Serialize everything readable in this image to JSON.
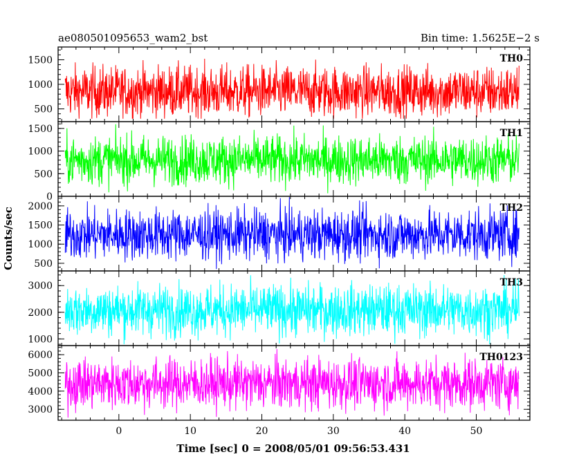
{
  "chart_data": {
    "type": "line",
    "title": "ae080501095653_wam2_bst",
    "bin_time": "Bin time: 1.5625E−2 s",
    "xlabel": "Time [sec] 0 = 2008/05/01 09:56:53.431",
    "ylabel": "Counts/sec",
    "xlim": [
      -8.5,
      57.5
    ],
    "data_x_range": [
      -7.5,
      56
    ],
    "x_ticks": [
      0,
      10,
      20,
      30,
      40,
      50
    ],
    "x_tick_labels": [
      "0",
      "10",
      "20",
      "30",
      "40",
      "50"
    ],
    "grid": false,
    "legend": "none",
    "panels": [
      {
        "name": "TH0",
        "color": "#ff0000",
        "ylim": [
          240,
          1760
        ],
        "y_ticks": [
          500,
          1000,
          1500
        ],
        "y_tick_labels": [
          "500",
          "1000",
          "1500"
        ],
        "mean": 850,
        "spread": 260,
        "min": 300,
        "max": 1750
      },
      {
        "name": "TH1",
        "color": "#00ff00",
        "ylim": [
          0,
          1650
        ],
        "y_ticks": [
          0,
          500,
          1000,
          1500
        ],
        "y_tick_labels": [
          "0",
          "500",
          "1000",
          "1500"
        ],
        "mean": 800,
        "spread": 270,
        "min": 60,
        "max": 1640
      },
      {
        "name": "TH2",
        "color": "#0000ff",
        "ylim": [
          300,
          2250
        ],
        "y_ticks": [
          500,
          1000,
          1500,
          2000
        ],
        "y_tick_labels": [
          "500",
          "1000",
          "1500",
          "2000"
        ],
        "mean": 1250,
        "spread": 330,
        "min": 350,
        "max": 2230
      },
      {
        "name": "TH3",
        "color": "#00ffff",
        "ylim": [
          750,
          3550
        ],
        "y_ticks": [
          1000,
          2000,
          3000
        ],
        "y_tick_labels": [
          "1000",
          "2000",
          "3000"
        ],
        "mean": 2080,
        "spread": 480,
        "min": 800,
        "max": 3520
      },
      {
        "name": "TH0123",
        "color": "#ff00ff",
        "ylim": [
          2400,
          6500
        ],
        "y_ticks": [
          3000,
          4000,
          5000,
          6000
        ],
        "y_tick_labels": [
          "3000",
          "4000",
          "5000",
          "6000"
        ],
        "mean": 4420,
        "spread": 700,
        "min": 2500,
        "max": 6480
      }
    ]
  }
}
